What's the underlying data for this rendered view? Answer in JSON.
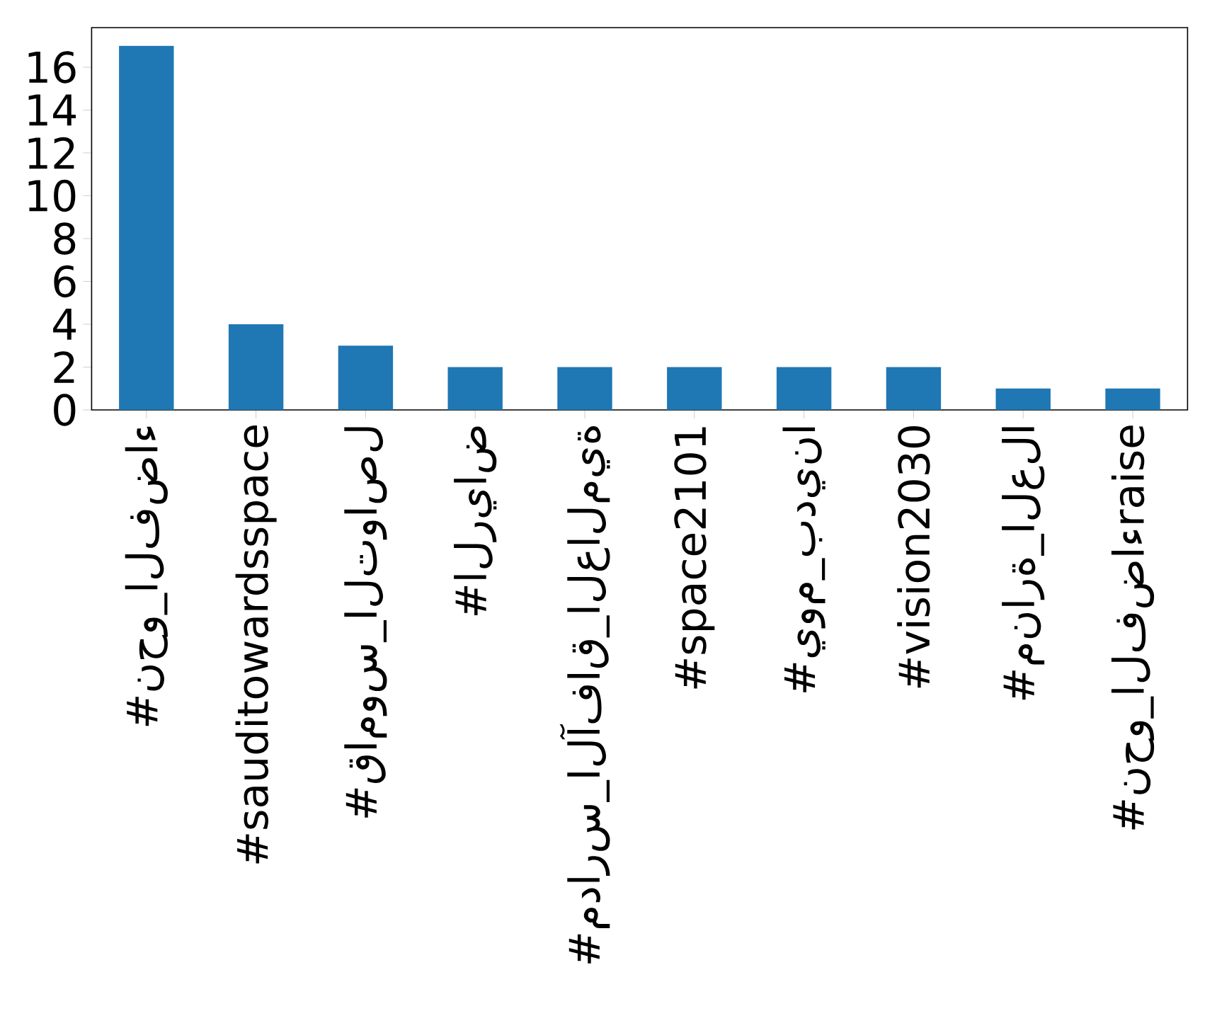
{
  "chart_data": {
    "type": "bar",
    "categories": [
      "#نحو_الفضاء",
      "#sauditowardsspace",
      "#قاموس_التواصل",
      "#الرياض",
      "#مدارس_الآفاق_العالمية",
      "#space2101",
      "#يوم_بدينا",
      "#vision2030",
      "#منارة_العلا",
      "#نحو_الفضاءraise"
    ],
    "values": [
      17,
      4,
      3,
      2,
      2,
      2,
      2,
      2,
      1,
      1
    ],
    "color": "#1f77b4",
    "ylim": [
      0,
      17.85
    ],
    "yticks": [
      0,
      2,
      4,
      6,
      8,
      10,
      12,
      14,
      16
    ],
    "grid": false
  }
}
